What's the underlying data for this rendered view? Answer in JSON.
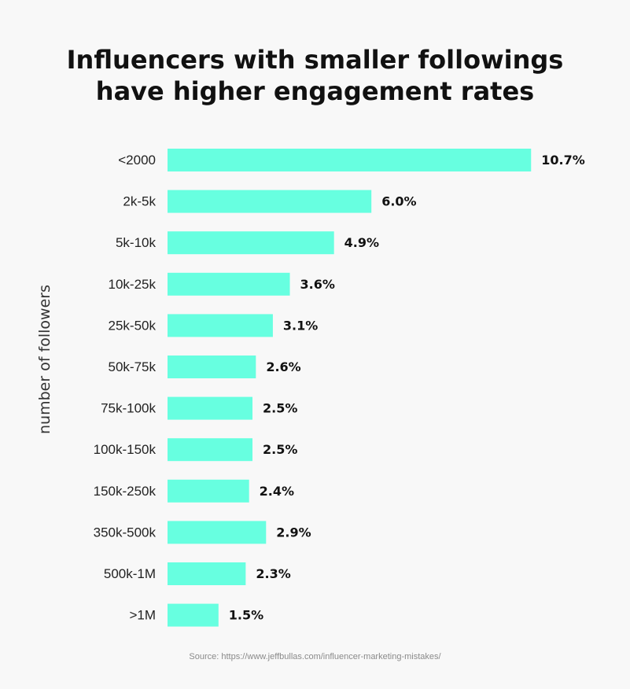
{
  "chart_data": {
    "type": "bar",
    "orientation": "horizontal",
    "title": [
      "Influencers with smaller followings",
      "have higher engagement rates"
    ],
    "ylabel": "number of followers",
    "xlabel": "",
    "categories": [
      "<2000",
      "2k-5k",
      "5k-10k",
      "10k-25k",
      "25k-50k",
      "50k-75k",
      "75k-100k",
      "100k-150k",
      "150k-250k",
      "350k-500k",
      "500k-1M",
      ">1M"
    ],
    "values": [
      10.7,
      6.0,
      4.9,
      3.6,
      3.1,
      2.6,
      2.5,
      2.5,
      2.4,
      2.9,
      2.3,
      1.5
    ],
    "value_labels": [
      "10.7%",
      "6.0%",
      "4.9%",
      "3.6%",
      "3.1%",
      "2.6%",
      "2.5%",
      "2.5%",
      "2.4%",
      "2.9%",
      "2.3%",
      "1.5%"
    ],
    "unit": "%",
    "grid": false,
    "legend": "none",
    "bar_color": "#67ffe0"
  },
  "source": "Source: https://www.jeffbullas.com/influencer-marketing-mistakes/"
}
